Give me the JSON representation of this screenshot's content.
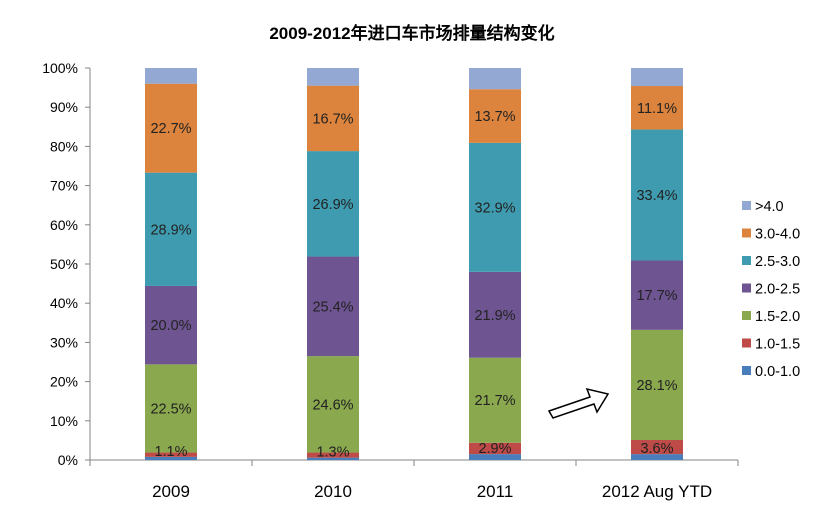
{
  "chart_data": {
    "type": "bar",
    "stacked": true,
    "title": "2009-2012年进口车市场排量结构变化",
    "xlabel": "",
    "ylabel": "",
    "ylim": [
      0,
      100
    ],
    "yticks": [
      "0%",
      "10%",
      "20%",
      "30%",
      "40%",
      "50%",
      "60%",
      "70%",
      "80%",
      "90%",
      "100%"
    ],
    "categories": [
      "2009",
      "2010",
      "2011",
      "2012 Aug YTD"
    ],
    "legend_position": "right",
    "series": [
      {
        "name": "0.0-1.0",
        "color": "#4a7ebb",
        "values": [
          0.8,
          0.6,
          1.5,
          1.5
        ],
        "labels": [
          "",
          "",
          "",
          ""
        ]
      },
      {
        "name": "1.0-1.5",
        "color": "#be4b48",
        "values": [
          1.1,
          1.3,
          2.9,
          3.6
        ],
        "labels": [
          "1.1%",
          "1.3%",
          "2.9%",
          "3.6%"
        ]
      },
      {
        "name": "1.5-2.0",
        "color": "#8aa84e",
        "values": [
          22.5,
          24.6,
          21.7,
          28.1
        ],
        "labels": [
          "22.5%",
          "24.6%",
          "21.7%",
          "28.1%"
        ]
      },
      {
        "name": "2.0-2.5",
        "color": "#6e5491",
        "values": [
          20.0,
          25.4,
          21.9,
          17.7
        ],
        "labels": [
          "20.0%",
          "25.4%",
          "21.9%",
          "17.7%"
        ]
      },
      {
        "name": "2.5-3.0",
        "color": "#3f9cb0",
        "values": [
          28.9,
          26.9,
          32.9,
          33.4
        ],
        "labels": [
          "28.9%",
          "26.9%",
          "32.9%",
          "33.4%"
        ]
      },
      {
        "name": "3.0-4.0",
        "color": "#dc843d",
        "values": [
          22.7,
          16.7,
          13.7,
          11.1
        ],
        "labels": [
          "22.7%",
          "16.7%",
          "13.7%",
          "11.1%"
        ]
      },
      {
        "name": ">4.0",
        "color": "#93a9d3",
        "values": [
          4.0,
          4.5,
          5.4,
          4.6
        ],
        "labels": [
          "",
          "",
          "",
          ""
        ]
      }
    ],
    "annotations": [
      {
        "type": "arrow",
        "points_to": "2012 Aug YTD"
      }
    ]
  }
}
